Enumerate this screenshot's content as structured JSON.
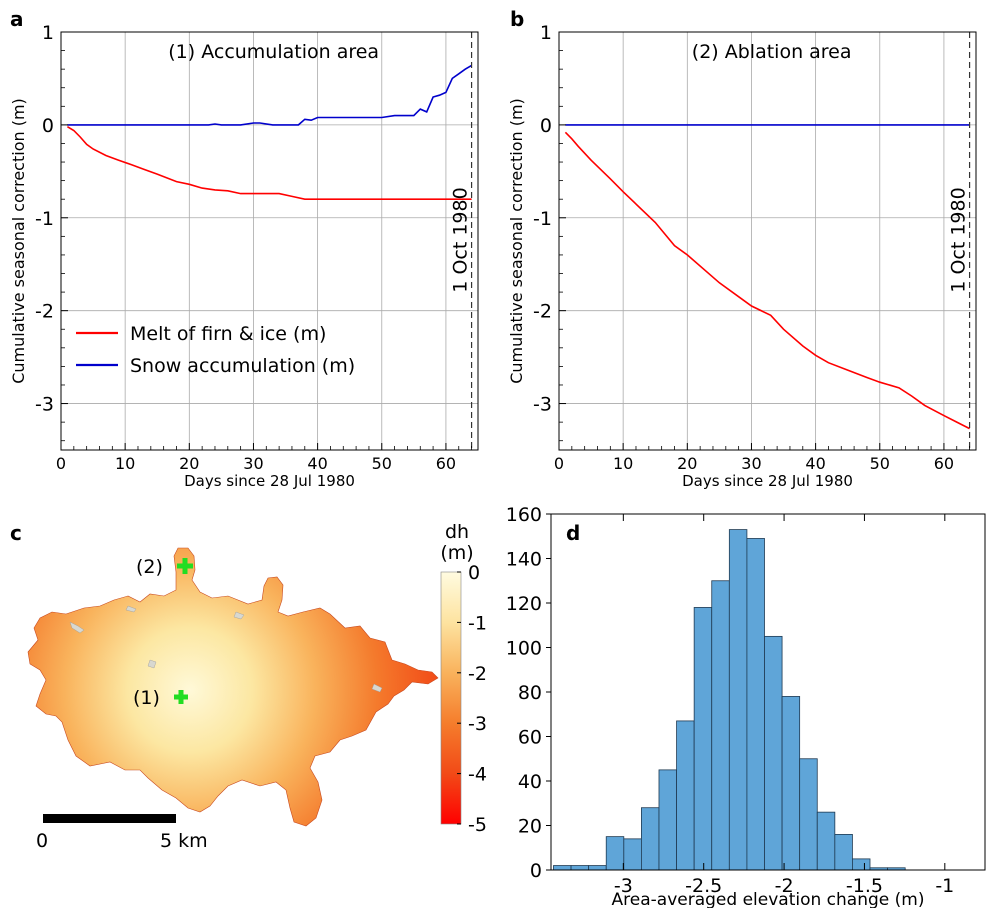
{
  "chart_data": [
    {
      "panel": "a",
      "type": "line",
      "title": "(1) Accumulation area",
      "xlabel": "Days since 28 Jul 1980",
      "ylabel": "Cumulative seasonal correction (m)",
      "xlim": [
        0,
        65
      ],
      "ylim": [
        -3.5,
        1
      ],
      "xticks": [
        "0",
        "10",
        "20",
        "30",
        "40",
        "50",
        "60"
      ],
      "yticks": [
        "-3",
        "-2",
        "-1",
        "0",
        "1"
      ],
      "grid": true,
      "legend": "center-left",
      "vline": {
        "x": 64,
        "label": "1 Oct 1980"
      },
      "series": [
        {
          "name": "Melt of firn & ice (m)",
          "color": "#ff0000",
          "x": [
            1,
            2,
            3,
            4,
            5,
            7,
            9,
            11,
            13,
            15,
            18,
            20,
            22,
            24,
            26,
            28,
            30,
            32,
            34,
            36,
            38,
            40,
            45,
            50,
            55,
            60,
            64
          ],
          "y": [
            -0.02,
            -0.06,
            -0.13,
            -0.21,
            -0.26,
            -0.33,
            -0.38,
            -0.43,
            -0.48,
            -0.53,
            -0.61,
            -0.64,
            -0.68,
            -0.7,
            -0.71,
            -0.74,
            -0.74,
            -0.74,
            -0.74,
            -0.77,
            -0.8,
            -0.8,
            -0.8,
            -0.8,
            -0.8,
            -0.8,
            -0.8
          ]
        },
        {
          "name": "Snow accumulation (m)",
          "color": "#0000cc",
          "x": [
            1,
            23,
            24,
            25,
            26,
            28,
            30,
            31,
            33,
            34,
            37,
            38,
            39,
            40,
            45,
            50,
            52,
            53,
            55,
            56,
            57,
            58,
            59,
            60,
            61,
            62,
            63,
            64
          ],
          "y": [
            0,
            0,
            0.01,
            0,
            0,
            0,
            0.02,
            0.02,
            0,
            0,
            0,
            0.06,
            0.05,
            0.08,
            0.08,
            0.08,
            0.1,
            0.1,
            0.1,
            0.17,
            0.14,
            0.3,
            0.32,
            0.35,
            0.5,
            0.55,
            0.6,
            0.64
          ]
        }
      ]
    },
    {
      "panel": "b",
      "type": "line",
      "title": "(2) Ablation area",
      "xlabel": "Days since 28 Jul 1980",
      "ylabel": "Cumulative seasonal correction (m)",
      "xlim": [
        0,
        65
      ],
      "ylim": [
        -3.5,
        1
      ],
      "xticks": [
        "0",
        "10",
        "20",
        "30",
        "40",
        "50",
        "60"
      ],
      "yticks": [
        "-3",
        "-2",
        "-1",
        "0",
        "1"
      ],
      "grid": true,
      "vline": {
        "x": 64,
        "label": "1 Oct 1980"
      },
      "series": [
        {
          "name": "Melt of firn & ice (m)",
          "color": "#ff0000",
          "x": [
            1,
            2,
            3,
            5,
            8,
            10,
            15,
            18,
            20,
            25,
            28,
            30,
            33,
            35,
            38,
            40,
            42,
            45,
            48,
            50,
            53,
            55,
            57,
            60,
            62,
            64
          ],
          "y": [
            -0.08,
            -0.15,
            -0.23,
            -0.38,
            -0.58,
            -0.72,
            -1.05,
            -1.3,
            -1.4,
            -1.7,
            -1.85,
            -1.95,
            -2.05,
            -2.2,
            -2.38,
            -2.48,
            -2.56,
            -2.64,
            -2.72,
            -2.77,
            -2.83,
            -2.92,
            -3.02,
            -3.13,
            -3.2,
            -3.27
          ]
        },
        {
          "name": "Snow accumulation (m)",
          "color": "#0000cc",
          "x": [
            1,
            64
          ],
          "y": [
            0,
            0
          ]
        }
      ]
    },
    {
      "panel": "d",
      "type": "bar",
      "subtype": "histogram",
      "xlabel": "Area-averaged elevation change (m)",
      "ylabel": "",
      "xlim": [
        -3.45,
        -0.75
      ],
      "ylim": [
        0,
        160
      ],
      "xticks": [
        "-3",
        "-2.5",
        "-2",
        "-1.5",
        "-1"
      ],
      "yticks": [
        "0",
        "20",
        "40",
        "60",
        "80",
        "100",
        "120",
        "140",
        "160"
      ],
      "bin_width": 0.1094,
      "bin_start": -3.4346,
      "values": [
        2,
        2,
        2,
        15,
        14,
        28,
        45,
        67,
        118,
        130,
        153,
        149,
        105,
        78,
        50,
        26,
        16,
        5,
        1,
        1
      ],
      "color": "#5fa5d8"
    }
  ],
  "panel_labels": [
    "a",
    "b",
    "c",
    "d"
  ],
  "map": {
    "colorbar_title": "dh",
    "colorbar_unit": "(m)",
    "colorbar_ticks": [
      "0",
      "-1",
      "-2",
      "-3",
      "-4",
      "-5"
    ],
    "colorbar_stops": [
      "#fffbe0",
      "#fde3a0",
      "#f9b25c",
      "#f57d2c",
      "#f24a17",
      "#ff0000"
    ],
    "marker_color": "#22dd22",
    "points": [
      "(1)",
      "(2)"
    ],
    "scalebar": [
      "0",
      "5 km"
    ]
  }
}
